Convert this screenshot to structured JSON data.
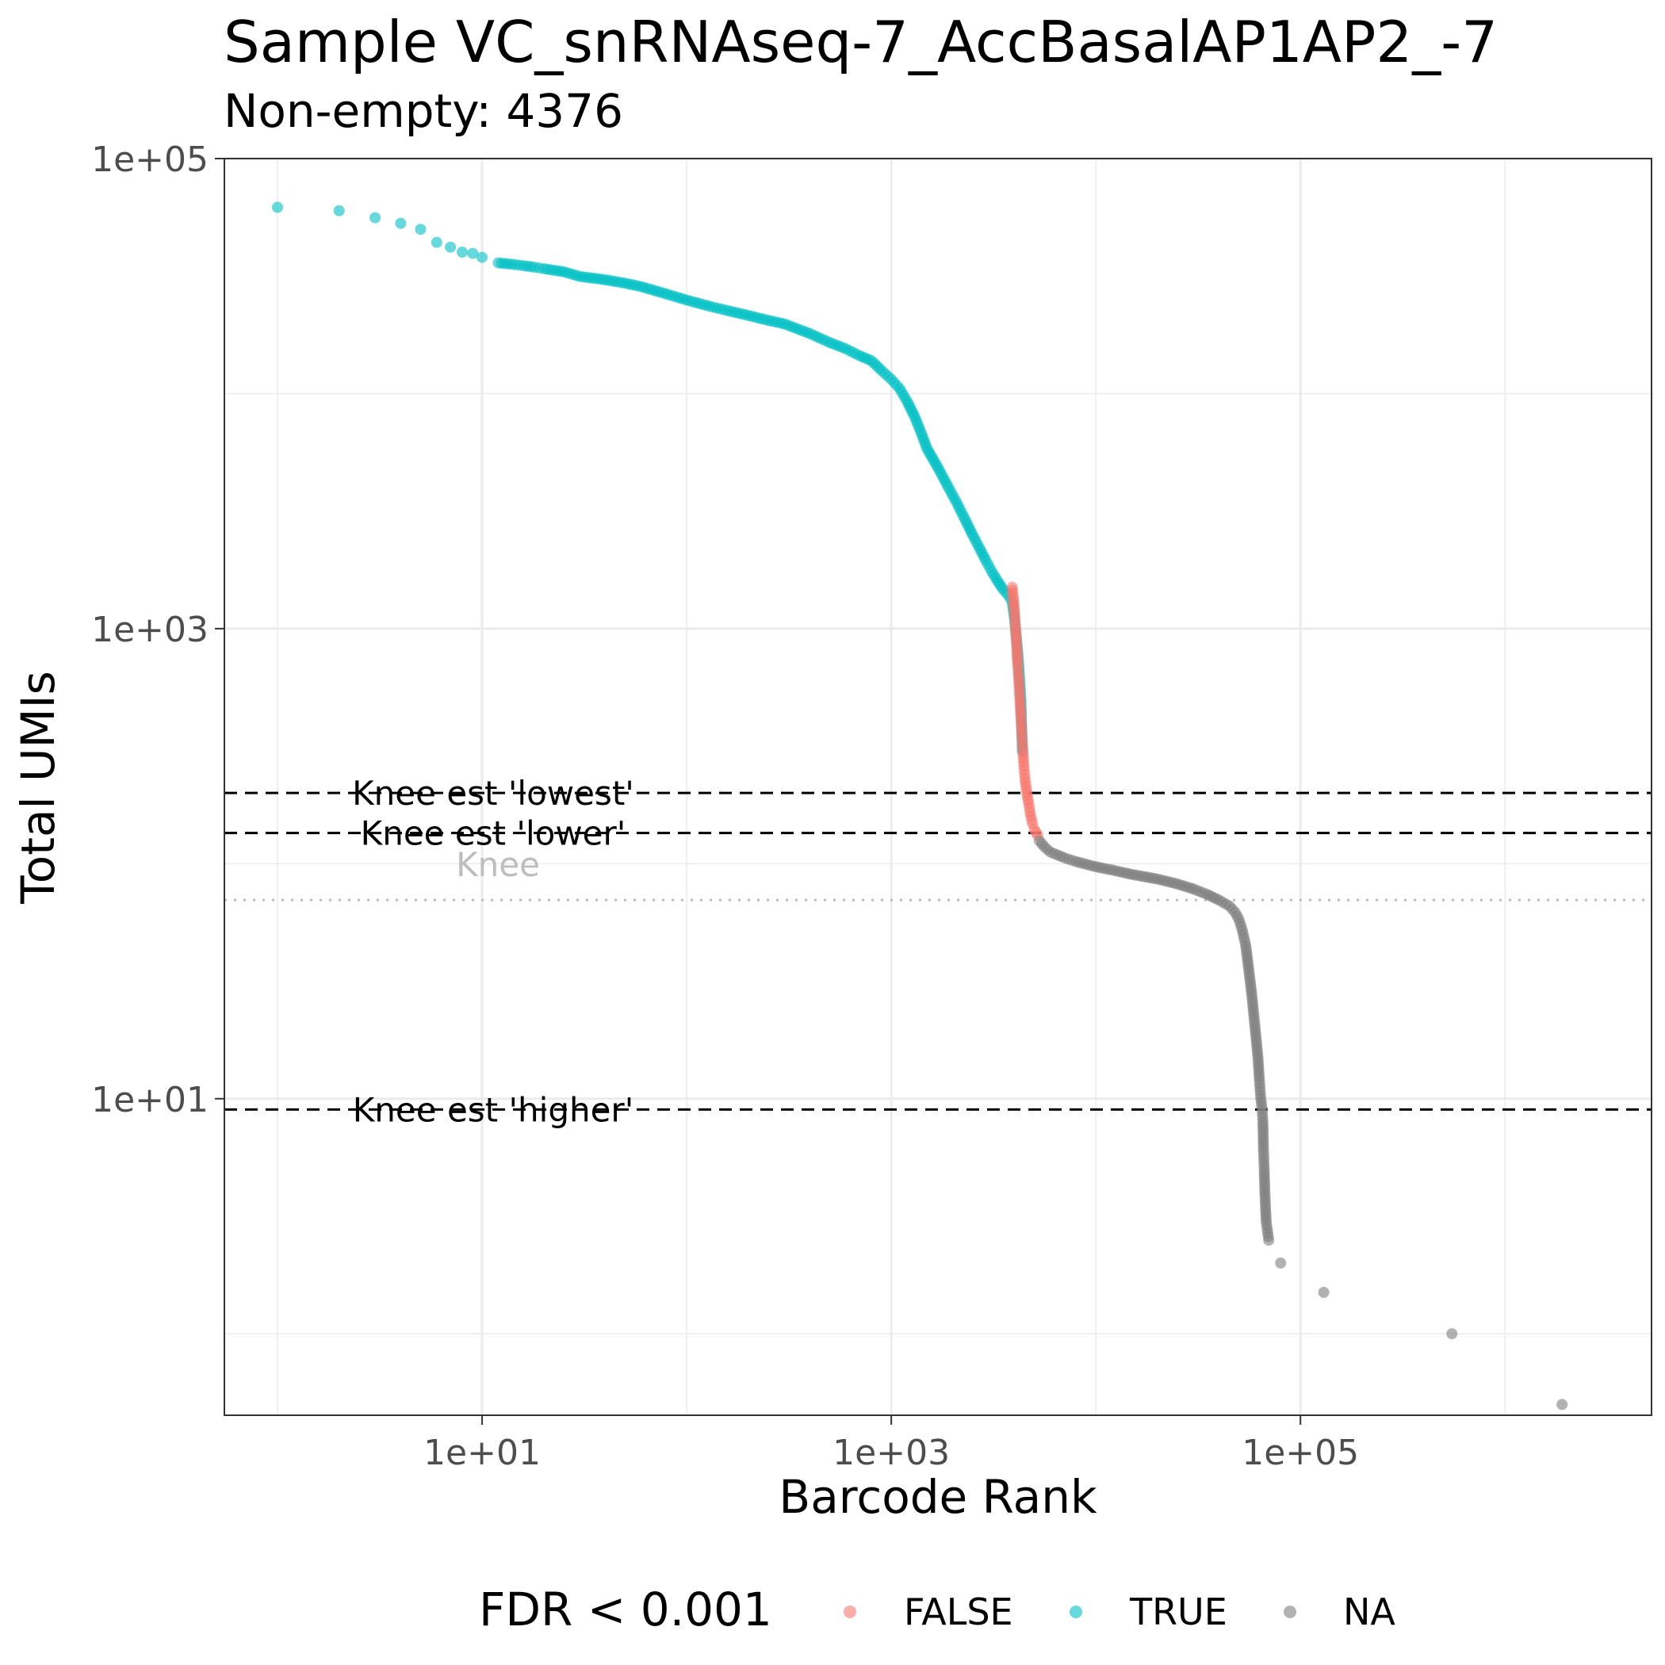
{
  "chart_data": {
    "type": "scatter",
    "title": "Sample VC_snRNAseq-7_AccBasalAP1AP2_-7",
    "subtitle": "Non-empty: 4376",
    "xlabel": "Barcode Rank",
    "ylabel": "Total UMIs",
    "x_scale": "log10",
    "y_scale": "log10",
    "xlim": [
      0.55,
      5200000
    ],
    "ylim": [
      0.45,
      100000
    ],
    "x_ticks": [
      10,
      1000,
      100000
    ],
    "x_tick_labels": [
      "1e+01",
      "1e+03",
      "1e+05"
    ],
    "y_ticks": [
      10,
      1000,
      100000
    ],
    "y_tick_labels": [
      "1e+01",
      "1e+03",
      "1e+05"
    ],
    "grid": true,
    "legend": {
      "title": "FDR < 0.001",
      "placement": "bottom",
      "entries": [
        {
          "label": "FALSE",
          "color": "#F8766D"
        },
        {
          "label": "TRUE",
          "color": "#00BFC4"
        },
        {
          "label": "NA",
          "color": "#7F7F7F"
        }
      ]
    },
    "hlines": [
      {
        "label": "Knee est 'lowest'",
        "y": 200,
        "style": "dashed",
        "color": "#000000"
      },
      {
        "label": "Knee est 'lower'",
        "y": 135,
        "style": "dashed",
        "color": "#000000"
      },
      {
        "label": "Knee",
        "y": 70,
        "style": "dotted",
        "color": "#bdbdbd"
      },
      {
        "label": "Knee est 'higher'",
        "y": 9,
        "style": "dashed",
        "color": "#000000"
      }
    ],
    "series": [
      {
        "name": "TRUE",
        "color": "#00BFC4",
        "x": [
          1,
          2,
          3,
          4,
          5,
          6,
          7,
          8,
          9,
          10,
          12,
          14,
          16,
          18,
          20,
          25,
          30,
          40,
          50,
          60,
          80,
          100,
          130,
          160,
          200,
          250,
          300,
          400,
          500,
          600,
          700,
          800,
          900,
          1000,
          1100,
          1200,
          1300,
          1400,
          1500,
          1700,
          1900,
          2100,
          2300,
          2500,
          2700,
          2900,
          3100,
          3300,
          3500,
          3700,
          3900,
          4000,
          4100,
          4200,
          4300,
          4376
        ],
        "y": [
          62000,
          60000,
          56000,
          53000,
          50000,
          44000,
          42000,
          40000,
          39500,
          38000,
          36000,
          35500,
          35000,
          34500,
          34000,
          33000,
          31500,
          30500,
          29500,
          28500,
          26500,
          25000,
          23500,
          22500,
          21500,
          20500,
          19800,
          18000,
          16500,
          15500,
          14500,
          13800,
          12500,
          11500,
          10500,
          9200,
          8000,
          6800,
          5800,
          4800,
          4000,
          3400,
          2900,
          2500,
          2200,
          1950,
          1750,
          1600,
          1480,
          1400,
          1300,
          1100,
          900,
          700,
          500,
          300
        ]
      },
      {
        "name": "FALSE",
        "color": "#F8766D",
        "x": [
          3900,
          4000,
          4050,
          4100,
          4150,
          4200,
          4250,
          4300,
          4350,
          4400,
          4450,
          4500,
          4600,
          4700,
          4800,
          4900,
          5000,
          5200
        ],
        "y": [
          1500,
          1200,
          1000,
          850,
          700,
          600,
          500,
          420,
          350,
          300,
          260,
          230,
          200,
          180,
          160,
          148,
          140,
          132
        ]
      },
      {
        "name": "NA",
        "color": "#7F7F7F",
        "x": [
          5300,
          5600,
          6000,
          7000,
          8000,
          10000,
          12000,
          15000,
          20000,
          25000,
          30000,
          35000,
          40000,
          45000,
          48000,
          50000,
          52000,
          54000,
          56000,
          58000,
          60000,
          62000,
          63000,
          64000,
          65000,
          65500,
          66000,
          66500,
          67000,
          68000,
          70000,
          80000,
          130000,
          550000,
          1900000
        ],
        "y": [
          125,
          118,
          112,
          106,
          102,
          97,
          94,
          90,
          86,
          82,
          78,
          74,
          70,
          66,
          62,
          58,
          52,
          45,
          35,
          27,
          20,
          15,
          12,
          10,
          9,
          8,
          6,
          5,
          4,
          3,
          2.5,
          2,
          1.5,
          1,
          0.5
        ]
      }
    ]
  }
}
